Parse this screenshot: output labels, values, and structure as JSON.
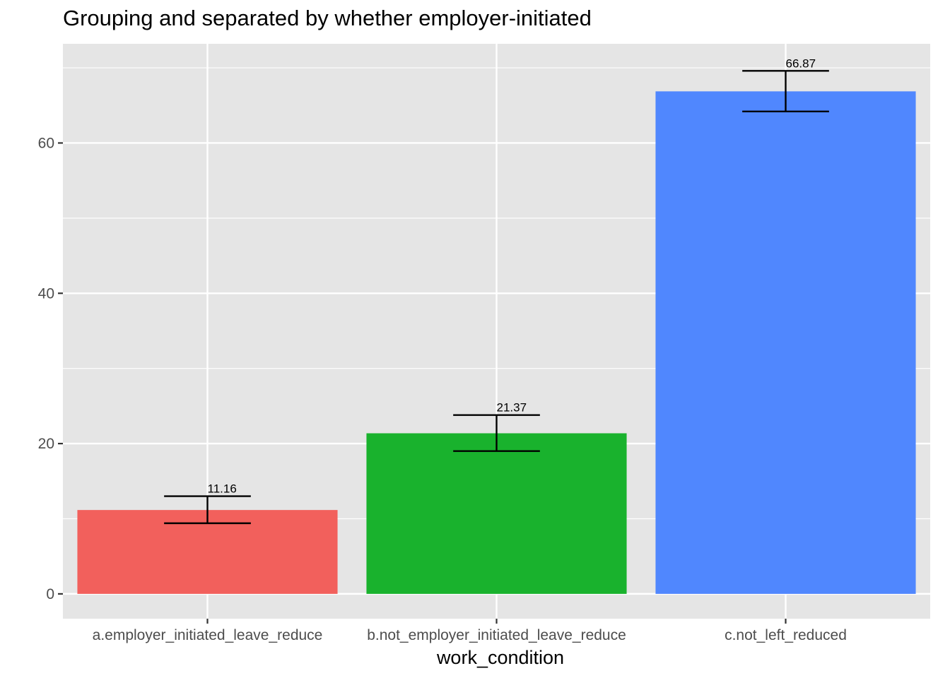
{
  "chart_data": {
    "type": "bar",
    "title": "Grouping and separated by whether employer-initiated",
    "xlabel": "work_condition",
    "ylabel": "",
    "categories": [
      "a.employer_initiated_leave_reduce",
      "b.not_employer_initiated_leave_reduce",
      "c.not_left_reduced"
    ],
    "values": [
      11.16,
      21.37,
      66.87
    ],
    "value_labels": [
      "11.16",
      "21.37",
      "66.87"
    ],
    "error_low": [
      9.4,
      19.0,
      64.2
    ],
    "error_high": [
      13.0,
      23.8,
      69.6
    ],
    "colors": [
      "#F2605C",
      "#19B22D",
      "#5087FE"
    ],
    "ylim": [
      -3.3,
      73.2
    ],
    "yticks": [
      0,
      20,
      40,
      60
    ],
    "ytick_labels": [
      "0",
      "20",
      "40",
      "60"
    ],
    "grid": true,
    "legend": "none",
    "panel_background": "#E5E5E5",
    "grid_color": "#FFFFFF"
  }
}
